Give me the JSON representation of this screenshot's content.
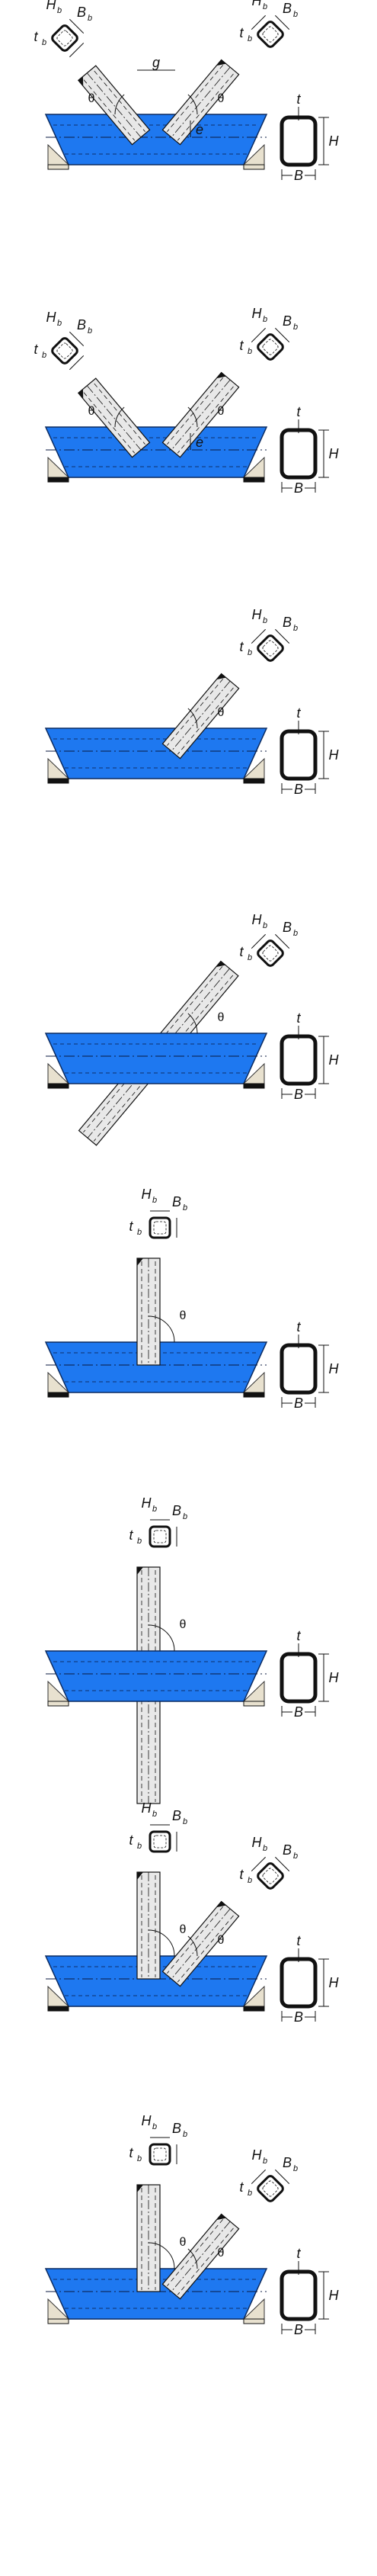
{
  "colors": {
    "chord": "#1e78f0",
    "chord_edge": "#0a2a60",
    "ink": "#111111",
    "support_dark": "#111111",
    "support_light": "#e8e1cf"
  },
  "labels": {
    "theta": "θ",
    "B": "B",
    "H": "H",
    "t": "t",
    "g": "g",
    "e": "e",
    "Bb": "B",
    "Hb": "H",
    "tb": "t",
    "sub_b": "b"
  },
  "panels": [
    {
      "name": "k-joint-gap",
      "branches": [
        "left-diagonal",
        "right-diagonal"
      ],
      "gap_label": "g",
      "eccentricity_label": "e",
      "support": "light"
    },
    {
      "name": "k-joint-overlap",
      "branches": [
        "left-diagonal",
        "right-diagonal"
      ],
      "eccentricity_label": "e",
      "support": "dark"
    },
    {
      "name": "y-joint",
      "branches": [
        "right-diagonal"
      ],
      "support": "dark"
    },
    {
      "name": "cross-diagonal",
      "branches": [
        "right-diagonal-through"
      ],
      "support": "dark"
    },
    {
      "name": "t-joint",
      "branches": [
        "vertical"
      ],
      "support": "dark"
    },
    {
      "name": "x-joint",
      "branches": [
        "vertical-through"
      ],
      "support": "light"
    },
    {
      "name": "n-joint-upper",
      "branches": [
        "vertical",
        "right-diagonal"
      ],
      "support": "dark"
    },
    {
      "name": "n-joint-gap",
      "branches": [
        "vertical",
        "right-diagonal"
      ],
      "support": "light"
    }
  ]
}
